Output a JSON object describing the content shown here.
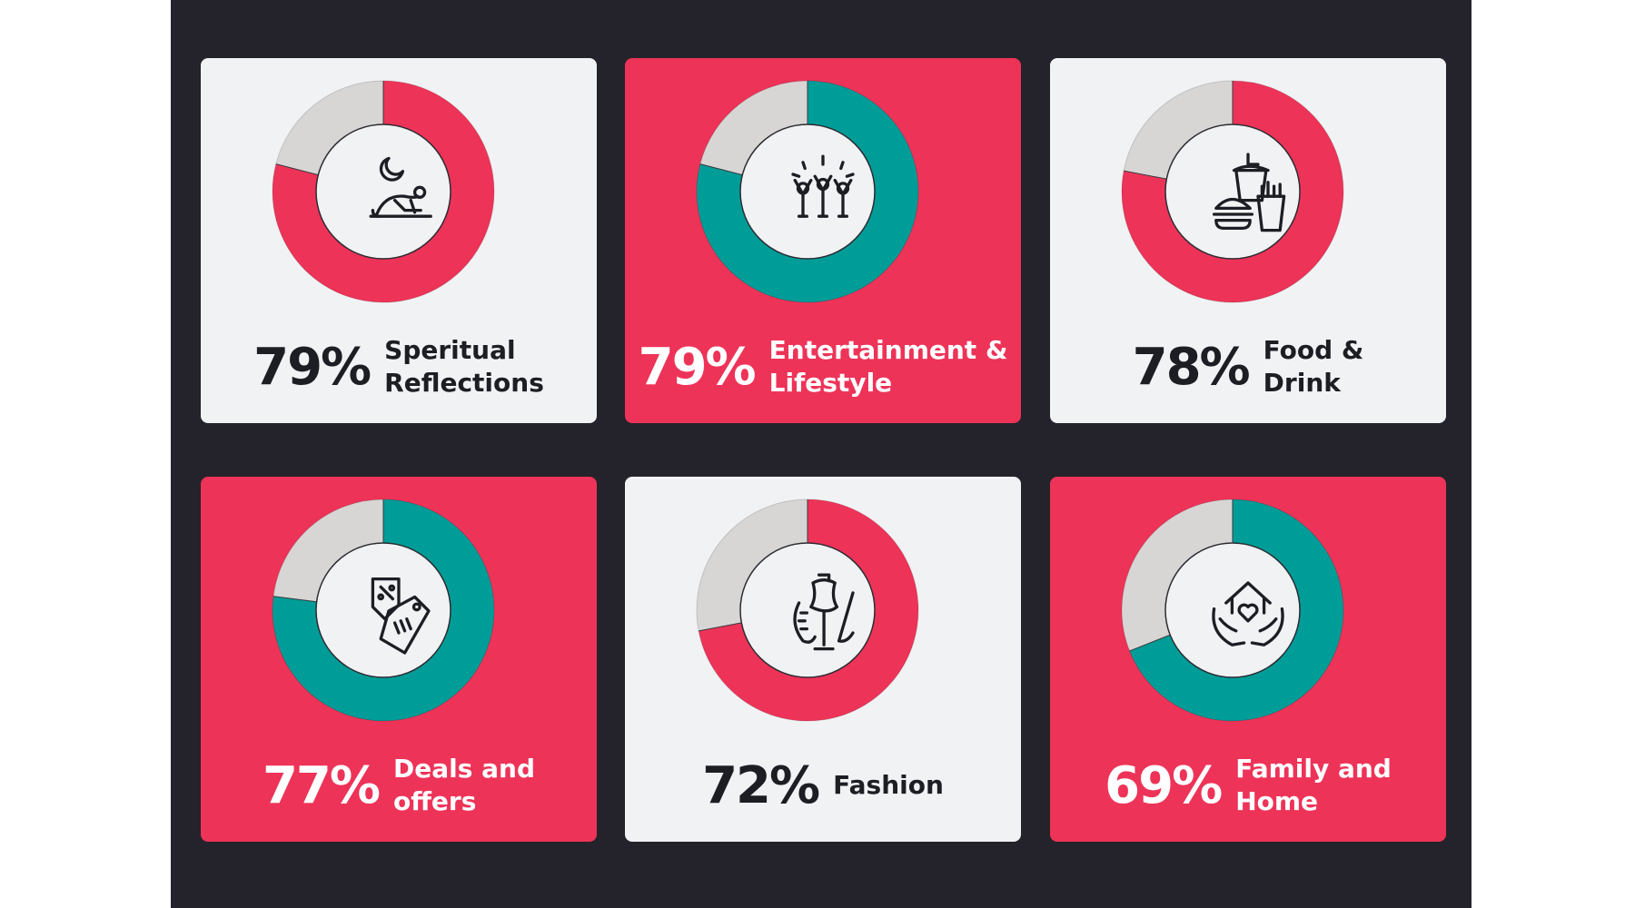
{
  "colors": {
    "background": "#24232b",
    "accent_red": "#ee3358",
    "accent_teal": "#009c98",
    "light_card": "#f1f2f4",
    "remainder_grey": "#d7d6d4",
    "dark_text": "#1d1d24",
    "light_text": "#ffffff"
  },
  "chart_data": [
    {
      "type": "pie",
      "percent": "79%",
      "value": 79,
      "label": "Speritual\nReflections",
      "theme": "light",
      "ring_color": "#ee3358",
      "icon": "prayer-icon"
    },
    {
      "type": "pie",
      "percent": "79%",
      "value": 79,
      "label": "Entertainment &\nLifestyle",
      "theme": "red",
      "ring_color": "#009c98",
      "icon": "celebration-icon"
    },
    {
      "type": "pie",
      "percent": "78%",
      "value": 78,
      "label": "Food &\nDrink",
      "theme": "light",
      "ring_color": "#ee3358",
      "icon": "fast-food-icon"
    },
    {
      "type": "pie",
      "percent": "77%",
      "value": 77,
      "label": "Deals and\noffers",
      "theme": "red",
      "ring_color": "#009c98",
      "icon": "deal-tag-icon"
    },
    {
      "type": "pie",
      "percent": "72%",
      "value": 72,
      "label": "Fashion",
      "theme": "light",
      "ring_color": "#ee3358",
      "icon": "tailor-mannequin-icon"
    },
    {
      "type": "pie",
      "percent": "69%",
      "value": 69,
      "label": "Family and\nHome",
      "theme": "red",
      "ring_color": "#009c98",
      "icon": "home-care-icon"
    }
  ]
}
